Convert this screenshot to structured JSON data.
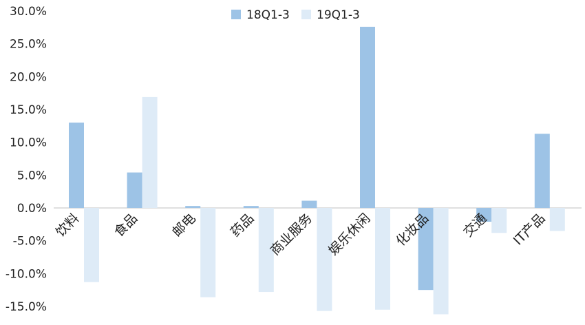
{
  "chart_data": {
    "type": "bar",
    "categories": [
      "饮料",
      "食品",
      "邮电",
      "药品",
      "商业服务",
      "娱乐休闲",
      "化妆品",
      "交通",
      "IT产品"
    ],
    "series": [
      {
        "name": "18Q1-3",
        "values": [
          13.0,
          5.4,
          0.3,
          0.3,
          1.1,
          27.6,
          -12.5,
          -2.1,
          11.3
        ]
      },
      {
        "name": "19Q1-3",
        "values": [
          -11.3,
          16.9,
          -13.6,
          -12.8,
          -15.7,
          -15.5,
          -16.2,
          -3.8,
          -3.5
        ]
      }
    ],
    "colors": [
      "#9dc3e6",
      "#deebf7"
    ],
    "yticks": [
      "30.0%",
      "25.0%",
      "20.0%",
      "15.0%",
      "10.0%",
      "5.0%",
      "0.0%",
      "-5.0%",
      "-10.0%",
      "-15.0%"
    ],
    "ylim": [
      -15,
      30
    ],
    "legend_position": "top",
    "grid": false,
    "title": "",
    "xlabel": "",
    "ylabel": ""
  }
}
